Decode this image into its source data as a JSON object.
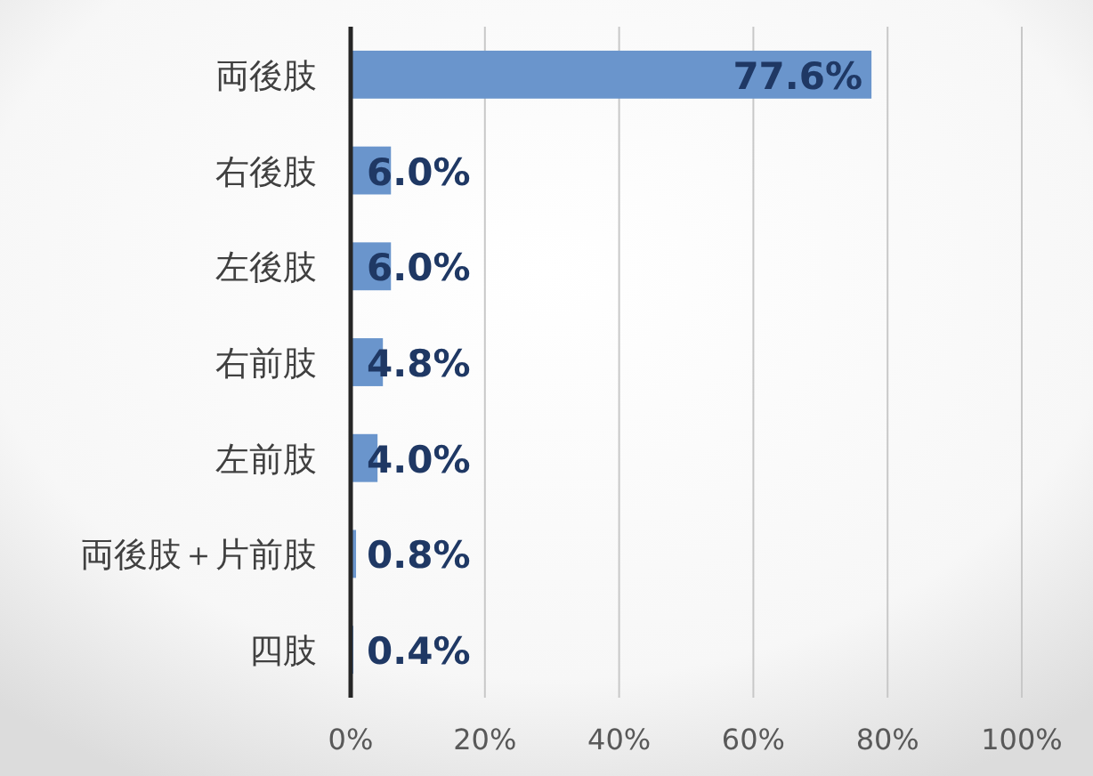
{
  "chart_data": {
    "type": "bar",
    "orientation": "horizontal",
    "categories": [
      "両後肢",
      "右後肢",
      "左後肢",
      "右前肢",
      "左前肢",
      "両後肢＋片前肢",
      "四肢"
    ],
    "values": [
      77.6,
      6.0,
      6.0,
      4.8,
      4.0,
      0.8,
      0.4
    ],
    "value_labels": [
      "77.6%",
      "6.0%",
      "6.0%",
      "4.8%",
      "4.0%",
      "0.8%",
      "0.4%"
    ],
    "color": "#6a95cc",
    "xlim": [
      0,
      100
    ],
    "xticks": [
      {
        "value": 0,
        "label": "0%"
      },
      {
        "value": 20,
        "label": "20%"
      },
      {
        "value": 40,
        "label": "40%"
      },
      {
        "value": 60,
        "label": "60%"
      },
      {
        "value": 80,
        "label": "80%"
      },
      {
        "value": 100,
        "label": "100%"
      }
    ],
    "grid": "x"
  }
}
